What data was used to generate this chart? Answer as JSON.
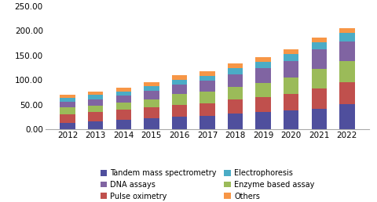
{
  "years": [
    2012,
    2013,
    2014,
    2015,
    2016,
    2017,
    2018,
    2019,
    2020,
    2021,
    2022
  ],
  "tandem_mass": [
    13,
    16,
    20,
    22,
    25,
    27,
    32,
    35,
    38,
    42,
    51
  ],
  "pulse_oximetry": [
    18,
    19,
    20,
    22,
    25,
    26,
    28,
    30,
    34,
    40,
    44
  ],
  "enzyme_based": [
    13,
    13,
    14,
    17,
    21,
    23,
    26,
    29,
    33,
    40,
    43
  ],
  "dna_assays": [
    12,
    13,
    14,
    17,
    20,
    22,
    26,
    30,
    34,
    40,
    40
  ],
  "electrophoresis": [
    8,
    9,
    9,
    9,
    10,
    11,
    12,
    13,
    14,
    15,
    17
  ],
  "others": [
    6,
    7,
    8,
    9,
    9,
    9,
    9,
    9,
    9,
    9,
    10
  ],
  "colors": {
    "tandem_mass": "#4f4f9d",
    "pulse_oximetry": "#c0504d",
    "enzyme_based": "#9bbb59",
    "dna_assays": "#8064a2",
    "electrophoresis": "#4bacc6",
    "others": "#f79646"
  },
  "ylim": [
    0,
    250
  ],
  "yticks": [
    0,
    50,
    100,
    150,
    200,
    250
  ],
  "legend_labels": [
    "Tandem mass spectrometry",
    "Pulse oximetry",
    "Enzyme based assay",
    "DNA assays",
    "Electrophoresis",
    "Others"
  ],
  "background_color": "#ffffff"
}
